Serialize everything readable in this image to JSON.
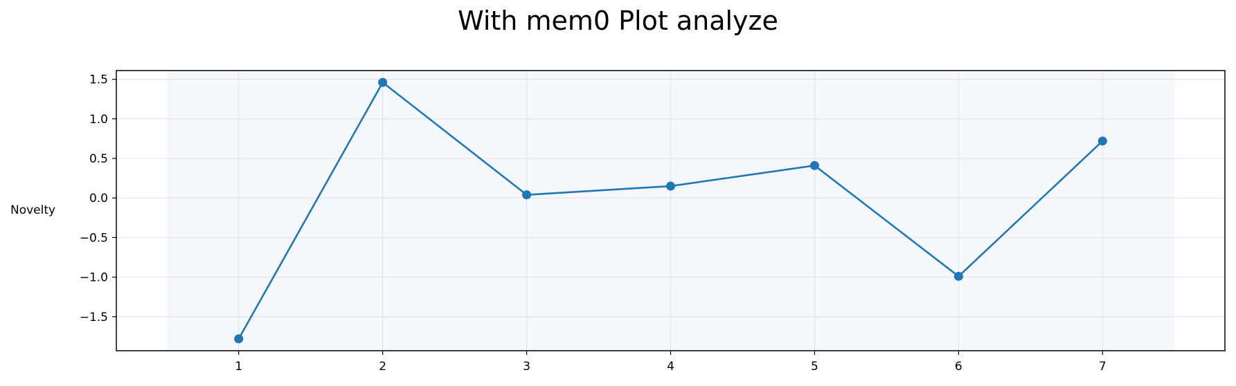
{
  "chart_data": {
    "type": "line",
    "title": "With mem0 Plot analyze",
    "xlabel": "",
    "ylabel": "Novelty",
    "x": [
      1,
      2,
      3,
      4,
      5,
      6,
      7
    ],
    "series": [
      {
        "values": [
          -1.78,
          1.46,
          0.04,
          0.15,
          0.41,
          -0.99,
          0.72
        ],
        "color": "#1f77b4"
      }
    ],
    "xlim": [
      0.15,
      7.85
    ],
    "ylim": [
      -1.93,
      1.61
    ],
    "xticks": [
      "1",
      "2",
      "3",
      "4",
      "5",
      "6",
      "7"
    ],
    "yticks": [
      -1.5,
      -1.0,
      -0.5,
      0.0,
      0.5,
      1.0,
      1.5
    ],
    "ytick_labels": [
      "−1.5",
      "−1.0",
      "−0.5",
      "0.0",
      "0.5",
      "1.0",
      "1.5"
    ],
    "grid": true,
    "shaded_region": {
      "x_range": [
        0.5,
        7.5
      ],
      "color": "#f4f7fc"
    }
  }
}
